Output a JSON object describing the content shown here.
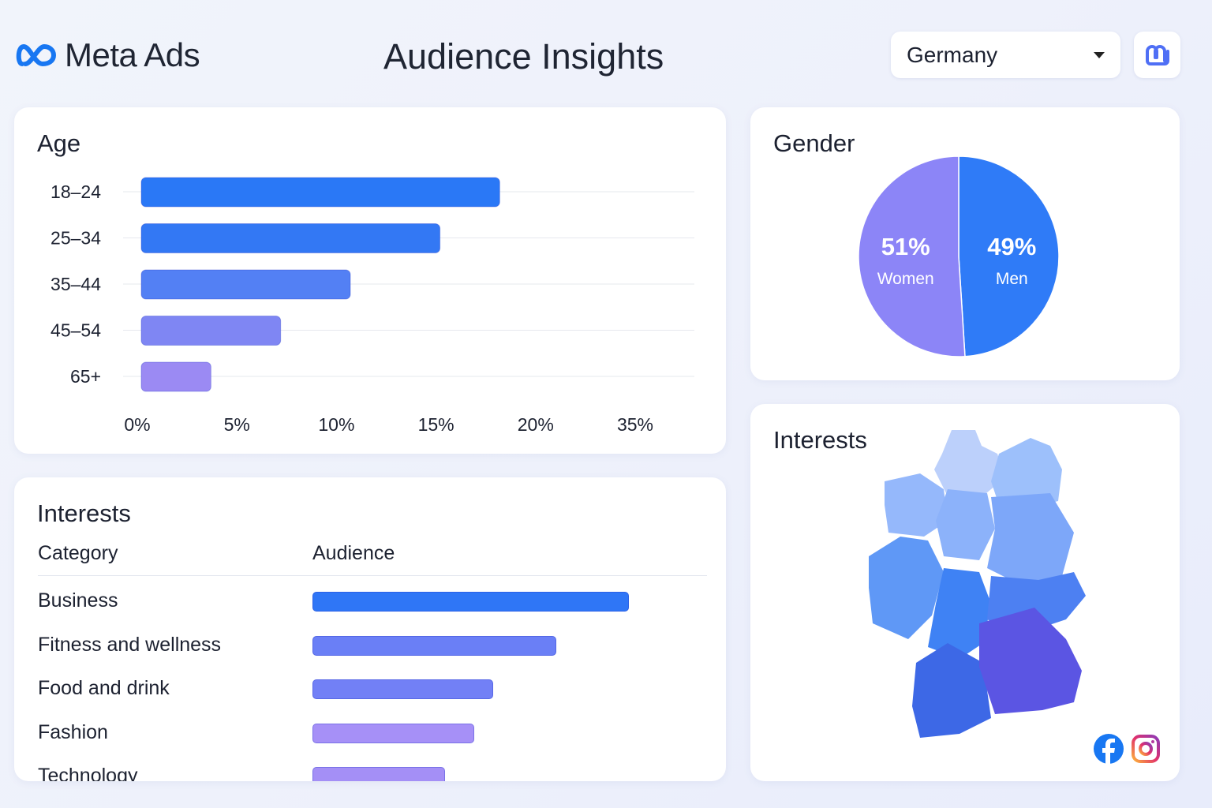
{
  "header": {
    "brand": "Meta Ads",
    "title": "Audience Insights",
    "country": "Germany",
    "icons": {
      "logo": "meta-infinity-icon",
      "action": "link-icon",
      "dropdown": "caret-down-icon"
    }
  },
  "age_card": {
    "title": "Age"
  },
  "gender_card": {
    "title": "Gender"
  },
  "interests_table": {
    "title": "Interests",
    "col_category": "Category",
    "col_audience": "Audience"
  },
  "interests_map": {
    "title": "Interests",
    "icons": [
      "facebook-icon",
      "instagram-icon"
    ]
  },
  "colors": {
    "accent": "#2f7bf7",
    "purple": "#8c85f7",
    "text": "#1c2130"
  },
  "chart_data": [
    {
      "type": "bar",
      "orientation": "horizontal",
      "title": "Age",
      "categories": [
        "18–24",
        "25–34",
        "35–44",
        "45–54",
        "65+"
      ],
      "values": [
        18,
        15,
        10.5,
        7,
        3.5
      ],
      "unit": "%",
      "tick_labels": [
        "0%",
        "5%",
        "10%",
        "15%",
        "20%",
        "35%"
      ],
      "xlim": [
        0,
        25
      ],
      "grid": true,
      "colors": [
        "#2a78f6",
        "#3378f4",
        "#5380f4",
        "#7f86f3",
        "#9b8af3"
      ]
    },
    {
      "type": "pie",
      "title": "Gender",
      "slices": [
        {
          "label": "Women",
          "value": 51,
          "display": "51%",
          "color": "#8c85f7"
        },
        {
          "label": "Men",
          "value": 49,
          "display": "49%",
          "color": "#2f7bf7"
        }
      ]
    },
    {
      "type": "bar",
      "orientation": "horizontal",
      "title": "Interests",
      "categories": [
        "Business",
        "Fitness and wellness",
        "Food and drink",
        "Fashion",
        "Technology"
      ],
      "values": [
        100,
        77,
        57,
        51,
        42
      ],
      "unit": "relative audience",
      "colors": [
        "#2f76f6",
        "#6a7ff6",
        "#7280f6",
        "#a690f7",
        "#a48ff6"
      ]
    }
  ]
}
